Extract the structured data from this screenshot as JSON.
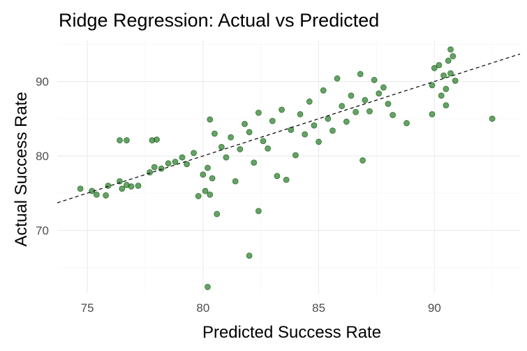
{
  "chart_data": {
    "type": "scatter",
    "title": "Ridge Regression: Actual vs Predicted",
    "xlabel": "Predicted Success Rate",
    "ylabel": "Actual Success Rate",
    "xlim": [
      73.7,
      93.7
    ],
    "ylim": [
      61.5,
      95.5
    ],
    "x_ticks": [
      75,
      80,
      85,
      90
    ],
    "y_ticks": [
      70,
      80,
      90
    ],
    "grid": true,
    "legend": "none",
    "point_color": "#006400",
    "reference_line": {
      "type": "identity",
      "slope": 1,
      "intercept": 0,
      "style": "dashed",
      "color": "#000000"
    },
    "series": [
      {
        "values": [
          {
            "x": 74.7,
            "y": 75.6
          },
          {
            "x": 75.2,
            "y": 75.3
          },
          {
            "x": 75.4,
            "y": 74.8
          },
          {
            "x": 75.8,
            "y": 74.7
          },
          {
            "x": 75.9,
            "y": 76.0
          },
          {
            "x": 76.4,
            "y": 76.6
          },
          {
            "x": 76.5,
            "y": 75.6
          },
          {
            "x": 76.7,
            "y": 76.1
          },
          {
            "x": 76.9,
            "y": 75.9
          },
          {
            "x": 77.2,
            "y": 76.0
          },
          {
            "x": 76.4,
            "y": 82.1
          },
          {
            "x": 76.7,
            "y": 82.1
          },
          {
            "x": 77.8,
            "y": 82.1
          },
          {
            "x": 78.0,
            "y": 82.2
          },
          {
            "x": 77.7,
            "y": 77.8
          },
          {
            "x": 77.9,
            "y": 78.5
          },
          {
            "x": 78.2,
            "y": 78.3
          },
          {
            "x": 78.5,
            "y": 79.0
          },
          {
            "x": 78.8,
            "y": 79.2
          },
          {
            "x": 79.1,
            "y": 79.8
          },
          {
            "x": 79.3,
            "y": 78.9
          },
          {
            "x": 79.6,
            "y": 80.4
          },
          {
            "x": 79.8,
            "y": 74.6
          },
          {
            "x": 80.1,
            "y": 75.3
          },
          {
            "x": 80.3,
            "y": 74.8
          },
          {
            "x": 80.0,
            "y": 77.5
          },
          {
            "x": 80.2,
            "y": 78.4
          },
          {
            "x": 80.4,
            "y": 77.0
          },
          {
            "x": 80.6,
            "y": 72.2
          },
          {
            "x": 82.4,
            "y": 72.6
          },
          {
            "x": 82.0,
            "y": 66.6
          },
          {
            "x": 80.2,
            "y": 62.4
          },
          {
            "x": 80.3,
            "y": 84.9
          },
          {
            "x": 80.5,
            "y": 83.0
          },
          {
            "x": 80.8,
            "y": 81.2
          },
          {
            "x": 81.0,
            "y": 79.8
          },
          {
            "x": 81.2,
            "y": 82.5
          },
          {
            "x": 81.4,
            "y": 76.6
          },
          {
            "x": 81.6,
            "y": 80.9
          },
          {
            "x": 81.8,
            "y": 84.3
          },
          {
            "x": 82.0,
            "y": 83.2
          },
          {
            "x": 82.2,
            "y": 79.1
          },
          {
            "x": 82.4,
            "y": 85.8
          },
          {
            "x": 82.6,
            "y": 82.0
          },
          {
            "x": 82.8,
            "y": 81.0
          },
          {
            "x": 83.0,
            "y": 84.7
          },
          {
            "x": 83.2,
            "y": 77.3
          },
          {
            "x": 83.4,
            "y": 86.2
          },
          {
            "x": 83.6,
            "y": 76.8
          },
          {
            "x": 83.8,
            "y": 83.5
          },
          {
            "x": 84.0,
            "y": 80.1
          },
          {
            "x": 84.2,
            "y": 85.6
          },
          {
            "x": 84.4,
            "y": 82.9
          },
          {
            "x": 84.6,
            "y": 87.3
          },
          {
            "x": 84.8,
            "y": 84.1
          },
          {
            "x": 85.0,
            "y": 81.9
          },
          {
            "x": 85.2,
            "y": 88.8
          },
          {
            "x": 85.4,
            "y": 85.0
          },
          {
            "x": 85.6,
            "y": 83.4
          },
          {
            "x": 85.8,
            "y": 90.4
          },
          {
            "x": 86.0,
            "y": 86.7
          },
          {
            "x": 86.2,
            "y": 84.6
          },
          {
            "x": 86.4,
            "y": 88.1
          },
          {
            "x": 86.6,
            "y": 85.9
          },
          {
            "x": 86.8,
            "y": 91.0
          },
          {
            "x": 87.0,
            "y": 87.5
          },
          {
            "x": 87.2,
            "y": 86.0
          },
          {
            "x": 87.4,
            "y": 90.2
          },
          {
            "x": 87.6,
            "y": 88.4
          },
          {
            "x": 87.8,
            "y": 89.2
          },
          {
            "x": 88.0,
            "y": 87.0
          },
          {
            "x": 88.2,
            "y": 85.5
          },
          {
            "x": 86.9,
            "y": 79.4
          },
          {
            "x": 88.8,
            "y": 84.4
          },
          {
            "x": 89.9,
            "y": 85.6
          },
          {
            "x": 92.5,
            "y": 85.0
          },
          {
            "x": 89.9,
            "y": 89.5
          },
          {
            "x": 90.0,
            "y": 91.8
          },
          {
            "x": 90.2,
            "y": 92.2
          },
          {
            "x": 90.4,
            "y": 90.8
          },
          {
            "x": 90.5,
            "y": 89.0
          },
          {
            "x": 90.6,
            "y": 92.8
          },
          {
            "x": 90.8,
            "y": 93.4
          },
          {
            "x": 90.7,
            "y": 91.1
          },
          {
            "x": 90.9,
            "y": 90.1
          },
          {
            "x": 90.3,
            "y": 88.1
          },
          {
            "x": 90.5,
            "y": 86.8
          },
          {
            "x": 90.7,
            "y": 94.3
          }
        ]
      }
    ]
  }
}
